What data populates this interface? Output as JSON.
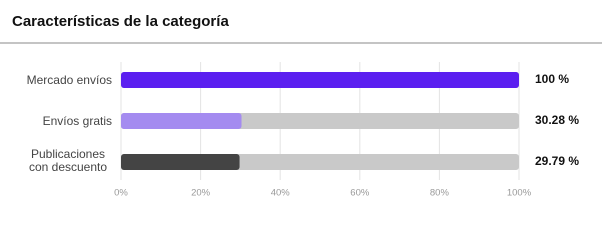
{
  "chart_data": {
    "type": "bar",
    "orientation": "horizontal",
    "title": "Características de la categoría",
    "categories": [
      "Mercado envíos",
      "Envíos gratis",
      "Publicaciones con descuento"
    ],
    "values": [
      100,
      30.28,
      29.79
    ],
    "value_labels": [
      "100 %",
      "30.28 %",
      "29.79 %"
    ],
    "colors": [
      "#5b1ff0",
      "#a48bf0",
      "#444444"
    ],
    "track_color": "#c9c9c9",
    "xlim": [
      0,
      100
    ],
    "xticks": [
      {
        "value": 0,
        "label": "0%"
      },
      {
        "value": 20,
        "label": "20%"
      },
      {
        "value": 40,
        "label": "40%"
      },
      {
        "value": 60,
        "label": "60%"
      },
      {
        "value": 80,
        "label": "80%"
      },
      {
        "value": 100,
        "label": "100%"
      }
    ],
    "grid": true
  }
}
